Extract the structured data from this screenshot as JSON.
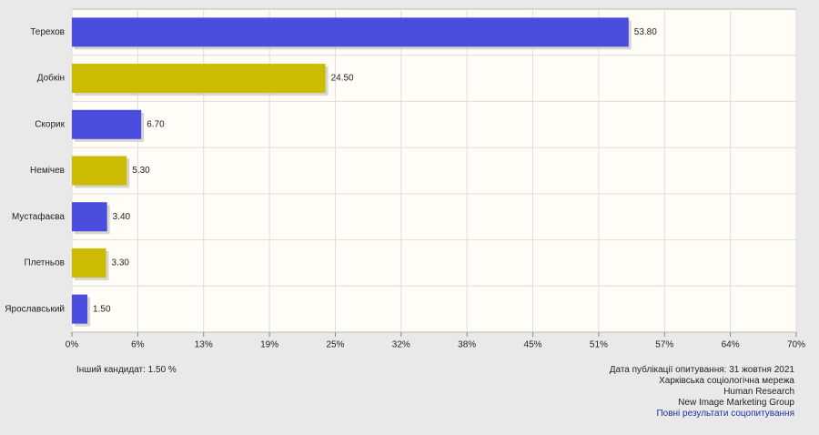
{
  "chart_data": {
    "type": "barh",
    "categories": [
      "Терехов",
      "Добкін",
      "Скорик",
      "Немічев",
      "Мустафаєва",
      "Плетньов",
      "Ярославський"
    ],
    "values": [
      53.8,
      24.5,
      6.7,
      5.3,
      3.4,
      3.3,
      1.5
    ],
    "value_labels": [
      "53.80",
      "24.50",
      "6.70",
      "5.30",
      "3.40",
      "3.30",
      "1.50"
    ],
    "colors": [
      "#4b4ddf",
      "#ccbb00",
      "#4b4ddf",
      "#ccbb00",
      "#4b4ddf",
      "#ccbb00",
      "#4b4ddf"
    ],
    "xlim": [
      0,
      70
    ],
    "xticks": [
      {
        "value": 0,
        "label": "0%"
      },
      {
        "value": 6.3636,
        "label": "6%"
      },
      {
        "value": 12.7273,
        "label": "13%"
      },
      {
        "value": 19.0909,
        "label": "19%"
      },
      {
        "value": 25.4545,
        "label": "25%"
      },
      {
        "value": 31.8182,
        "label": "32%"
      },
      {
        "value": 38.1818,
        "label": "38%"
      },
      {
        "value": 44.5455,
        "label": "45%"
      },
      {
        "value": 50.9091,
        "label": "51%"
      },
      {
        "value": 57.2727,
        "label": "57%"
      },
      {
        "value": 63.6364,
        "label": "64%"
      },
      {
        "value": 70,
        "label": "70%"
      }
    ],
    "grid": true
  },
  "footer": {
    "other": "Інший кандидат: 1.50 %",
    "sources": [
      "Дата публікації опитування: 31 жовтня 2021",
      "Харківська соціологічна мережа",
      "Human Research",
      "New Image Marketing Group"
    ],
    "link": "Повні результати соцопитування"
  }
}
